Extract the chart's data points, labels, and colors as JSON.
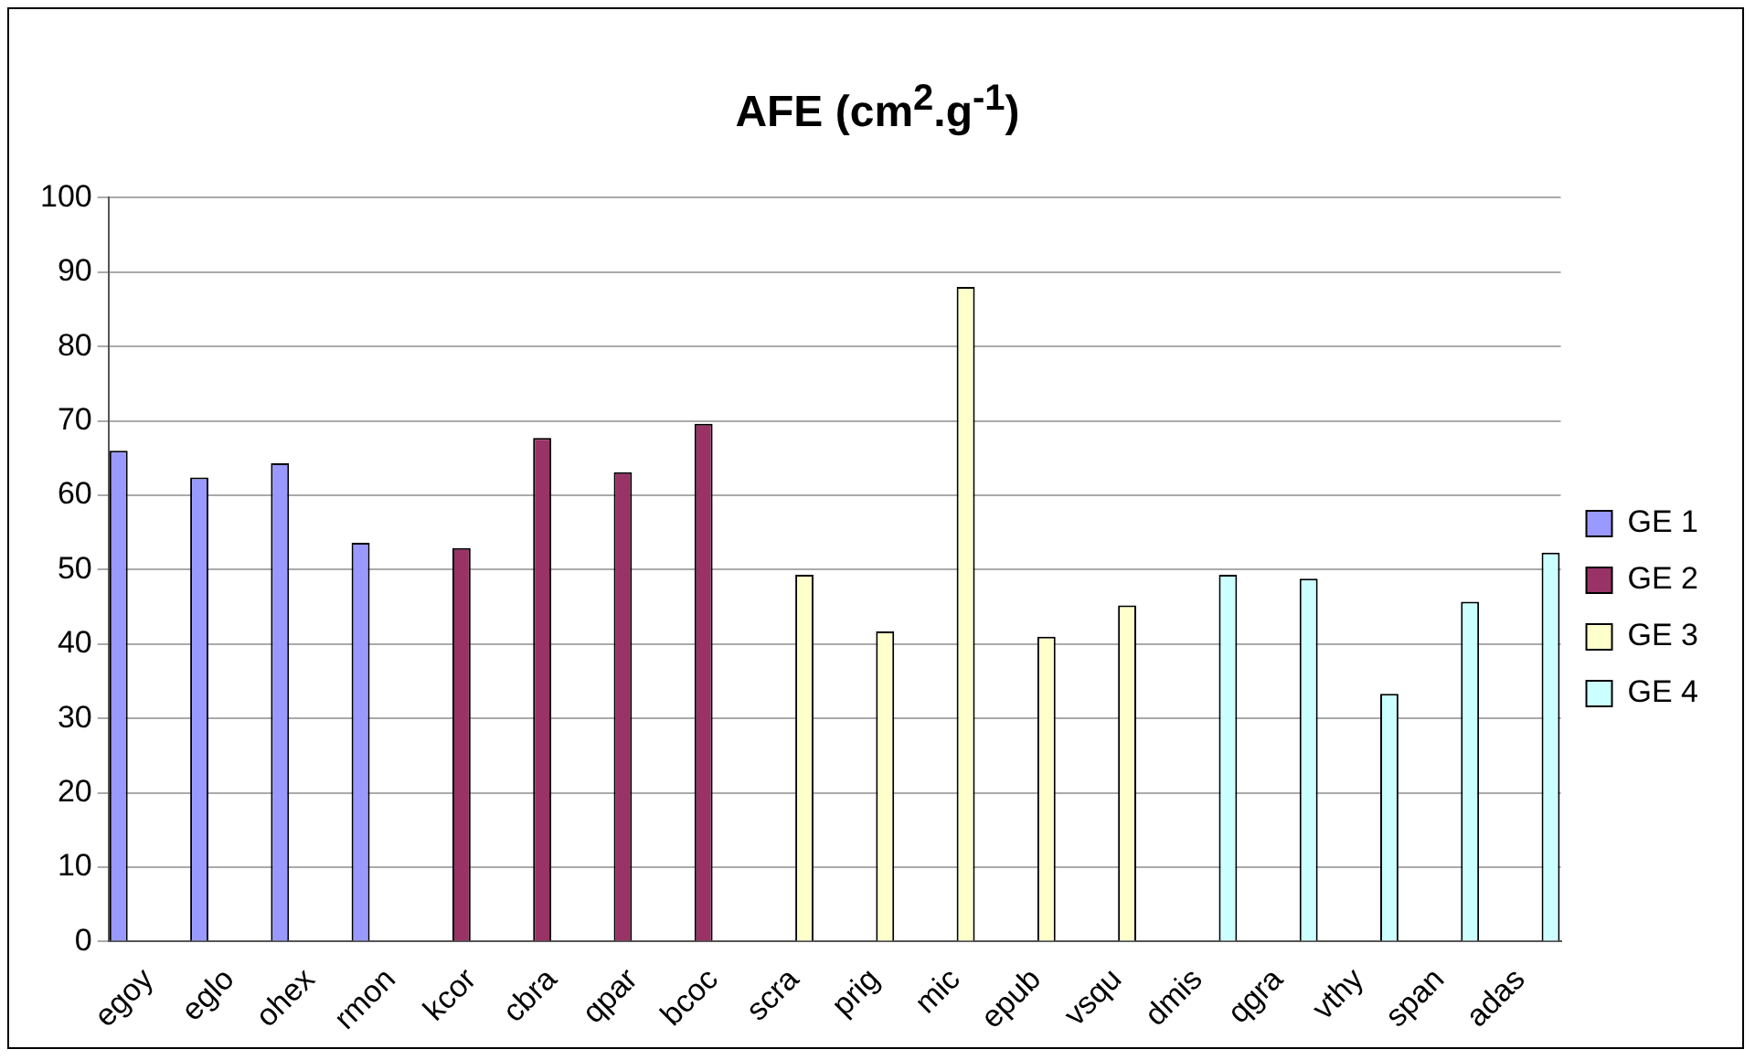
{
  "chart_data": {
    "type": "bar",
    "title": "AFE (cm$^{2}$.g$^{-1}$)",
    "categories": [
      "egoy",
      "eglo",
      "ohex",
      "rmon",
      "kcor",
      "cbra",
      "qpar",
      "bcoc",
      "scra",
      "prig",
      "mic",
      "epub",
      "vsqu",
      "dmis",
      "qgra",
      "vthy",
      "span",
      "adas"
    ],
    "series": [
      {
        "name": "GE 1",
        "color": "#9999ff",
        "values": [
          66,
          62.4,
          64.3,
          53.6,
          null,
          null,
          null,
          null,
          null,
          null,
          null,
          null,
          null,
          null,
          null,
          null,
          null,
          null
        ]
      },
      {
        "name": "GE 2",
        "color": "#993366",
        "values": [
          null,
          null,
          null,
          null,
          52.9,
          67.7,
          63.1,
          69.6,
          null,
          null,
          null,
          null,
          null,
          null,
          null,
          null,
          null,
          null
        ]
      },
      {
        "name": "GE 3",
        "color": "#ffffcc",
        "values": [
          null,
          null,
          null,
          null,
          null,
          null,
          null,
          null,
          49.3,
          41.7,
          88,
          41,
          45.2,
          null,
          null,
          null,
          null,
          null
        ]
      },
      {
        "name": "GE 4",
        "color": "#ccffff",
        "values": [
          null,
          null,
          null,
          null,
          null,
          null,
          null,
          null,
          null,
          null,
          null,
          null,
          null,
          49.3,
          48.8,
          33.3,
          45.7,
          52.3
        ]
      }
    ],
    "ylim": [
      0,
      100
    ],
    "yticks": [
      0,
      10,
      20,
      30,
      40,
      50,
      60,
      70,
      80,
      90,
      100
    ],
    "grid": "y",
    "legend": "right"
  }
}
